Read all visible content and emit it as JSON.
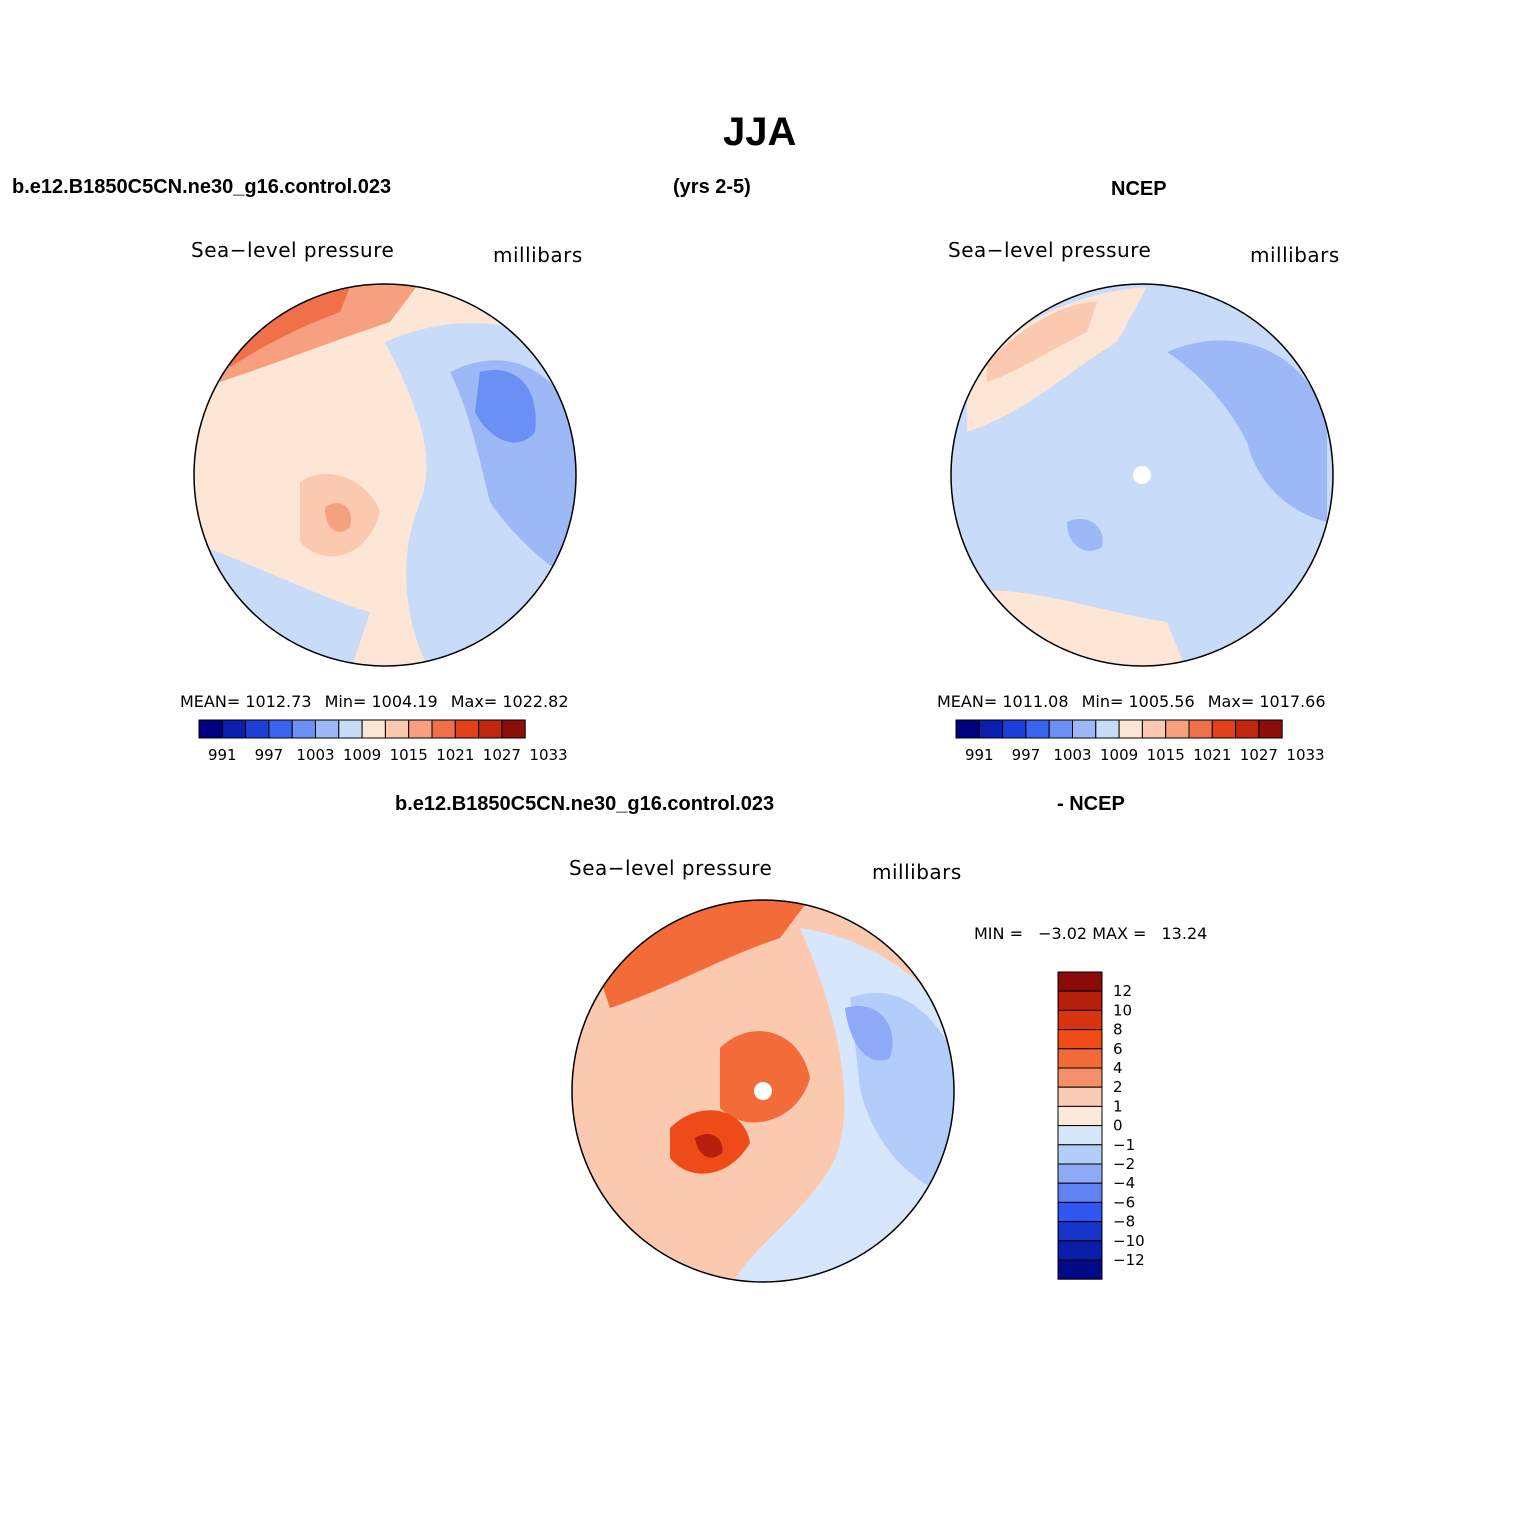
{
  "page": {
    "season_title": "JJA",
    "case_name": "b.e12.B1850C5CN.ne30_g16.control.023",
    "years": "(yrs 2-5)",
    "obs_name": "NCEP",
    "diff_case": "b.e12.B1850C5CN.ne30_g16.control.023",
    "diff_obs": "- NCEP"
  },
  "panels": {
    "model": {
      "variable": "Sea−level pressure",
      "units": "millibars",
      "mean_label": "MEAN=",
      "mean": "1012.73",
      "min_label": "Min=",
      "min": "1004.19",
      "max_label": "Max=",
      "max": "1022.82"
    },
    "obs": {
      "variable": "Sea−level pressure",
      "units": "millibars",
      "mean_label": "MEAN=",
      "mean": "1011.08",
      "min_label": "Min=",
      "min": "1005.56",
      "max_label": "Max=",
      "max": "1017.66"
    },
    "diff": {
      "variable": "Sea−level pressure",
      "units": "millibars",
      "min_label": "MIN =",
      "min": "−3.02",
      "max_label": "MAX =",
      "max": "13.24"
    }
  },
  "colorbar_abs": {
    "colors": [
      "#000080",
      "#0a1eb0",
      "#1c3fd9",
      "#3a63f0",
      "#6a8ff5",
      "#9db8f7",
      "#c8dbf9",
      "#fde6d6",
      "#fbc9b0",
      "#f6a07f",
      "#f07049",
      "#e1421a",
      "#c0270e",
      "#8c0f0a"
    ],
    "ticks": [
      "991",
      "997",
      "1003",
      "1009",
      "1015",
      "1021",
      "1027",
      "1033"
    ]
  },
  "colorbar_diff": {
    "colors": [
      "#8b0a0a",
      "#b8200e",
      "#d9340f",
      "#ee4b18",
      "#f36b38",
      "#f6906a",
      "#facbb5",
      "#fde9dc",
      "#d7e7fb",
      "#b3cdfb",
      "#8eaaf6",
      "#5f83f2",
      "#2f56f0",
      "#1536c8",
      "#0a1ea8",
      "#020a85"
    ],
    "ticks": [
      "12",
      "10",
      "8",
      "6",
      "4",
      "2",
      "1",
      "0",
      "−1",
      "−2",
      "−4",
      "−6",
      "−8",
      "−10",
      "−12"
    ]
  }
}
